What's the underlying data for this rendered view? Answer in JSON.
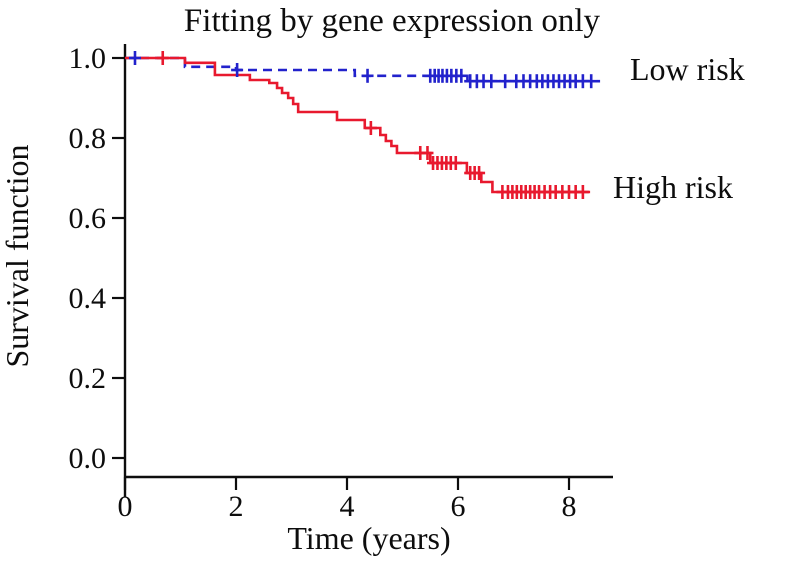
{
  "chart_data": {
    "type": "line",
    "subtype": "kaplan-meier-step-survival",
    "title": "Fitting by gene expression only",
    "xlabel": "Time (years)",
    "ylabel": "Survival function",
    "xlim": [
      0,
      8.8
    ],
    "ylim": [
      0.0,
      1.04
    ],
    "x_ticks": [
      0,
      2,
      4,
      6,
      8
    ],
    "y_ticks": [
      0.0,
      0.2,
      0.4,
      0.6,
      0.8,
      1.0
    ],
    "grid": false,
    "legend_position": "labels-right-of-curves",
    "axis_color": "#0d0d0d",
    "series": [
      {
        "name": "Low risk",
        "color": "#2222cc",
        "line_style": "dashed",
        "end_t": 8.56,
        "steps": [
          [
            0,
            1.0
          ],
          [
            1.08,
            0.978
          ],
          [
            2.0,
            0.97
          ],
          [
            4.14,
            0.9555
          ],
          [
            6.17,
            0.942
          ]
        ],
        "censors": [
          [
            0.18,
            1.0
          ],
          [
            2.02,
            0.97
          ],
          [
            4.37,
            0.9555
          ],
          [
            5.5,
            0.9555
          ],
          [
            5.58,
            0.9555
          ],
          [
            5.65,
            0.9555
          ],
          [
            5.72,
            0.9555
          ],
          [
            5.8,
            0.9555
          ],
          [
            5.88,
            0.9555
          ],
          [
            5.97,
            0.9555
          ],
          [
            6.06,
            0.9555
          ],
          [
            6.22,
            0.942
          ],
          [
            6.34,
            0.942
          ],
          [
            6.46,
            0.942
          ],
          [
            6.6,
            0.942
          ],
          [
            6.85,
            0.942
          ],
          [
            7.05,
            0.942
          ],
          [
            7.18,
            0.942
          ],
          [
            7.3,
            0.942
          ],
          [
            7.42,
            0.942
          ],
          [
            7.52,
            0.942
          ],
          [
            7.62,
            0.942
          ],
          [
            7.72,
            0.942
          ],
          [
            7.82,
            0.942
          ],
          [
            7.92,
            0.942
          ],
          [
            8.02,
            0.942
          ],
          [
            8.12,
            0.942
          ],
          [
            8.25,
            0.942
          ],
          [
            8.4,
            0.942
          ]
        ]
      },
      {
        "name": "High risk",
        "color": "#e8192e",
        "line_style": "solid",
        "end_t": 8.38,
        "steps": [
          [
            0,
            1.0
          ],
          [
            1.08,
            0.988
          ],
          [
            1.62,
            0.9575
          ],
          [
            2.25,
            0.945
          ],
          [
            2.6,
            0.9375
          ],
          [
            2.74,
            0.925
          ],
          [
            2.83,
            0.9125
          ],
          [
            2.94,
            0.9
          ],
          [
            3.03,
            0.885
          ],
          [
            3.12,
            0.865
          ],
          [
            3.82,
            0.845
          ],
          [
            4.32,
            0.825
          ],
          [
            4.6,
            0.8075
          ],
          [
            4.7,
            0.7925
          ],
          [
            4.8,
            0.78
          ],
          [
            4.9,
            0.7625
          ],
          [
            5.5,
            0.7375
          ],
          [
            6.16,
            0.7125
          ],
          [
            6.42,
            0.69
          ],
          [
            6.62,
            0.665
          ]
        ],
        "censors": [
          [
            0.68,
            1.0
          ],
          [
            4.43,
            0.825
          ],
          [
            5.32,
            0.7625
          ],
          [
            5.45,
            0.7625
          ],
          [
            5.55,
            0.7375
          ],
          [
            5.63,
            0.7375
          ],
          [
            5.71,
            0.7375
          ],
          [
            5.79,
            0.7375
          ],
          [
            5.87,
            0.7375
          ],
          [
            5.96,
            0.7375
          ],
          [
            6.22,
            0.7125
          ],
          [
            6.3,
            0.7125
          ],
          [
            6.38,
            0.7125
          ],
          [
            6.8,
            0.665
          ],
          [
            6.9,
            0.665
          ],
          [
            6.98,
            0.665
          ],
          [
            7.06,
            0.665
          ],
          [
            7.14,
            0.665
          ],
          [
            7.22,
            0.665
          ],
          [
            7.3,
            0.665
          ],
          [
            7.38,
            0.665
          ],
          [
            7.46,
            0.665
          ],
          [
            7.56,
            0.665
          ],
          [
            7.66,
            0.665
          ],
          [
            7.76,
            0.665
          ],
          [
            7.88,
            0.665
          ],
          [
            8.0,
            0.665
          ],
          [
            8.12,
            0.665
          ],
          [
            8.25,
            0.665
          ]
        ]
      }
    ]
  }
}
